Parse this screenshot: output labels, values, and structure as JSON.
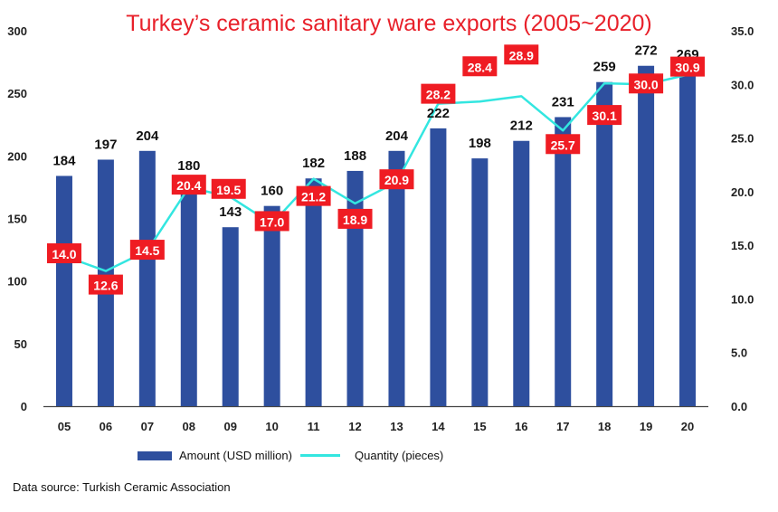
{
  "title": "Turkey’s ceramic sanitary ware exports (2005~2020)",
  "source": "Data source: Turkish Ceramic Association",
  "colors": {
    "bar": "#2e4f9e",
    "line": "#33e6e0",
    "label_box": "#ef1c23",
    "title": "#e8202a"
  },
  "chart_data": {
    "type": "bar",
    "title": "Turkey’s ceramic sanitary ware exports (2005~2020)",
    "categories": [
      "05",
      "06",
      "07",
      "08",
      "09",
      "10",
      "11",
      "12",
      "13",
      "14",
      "15",
      "16",
      "17",
      "18",
      "19",
      "20"
    ],
    "series": [
      {
        "name": "Amount (USD million)",
        "type": "bar",
        "axis": "left",
        "values": [
          184,
          197,
          204,
          180,
          143,
          160,
          182,
          188,
          204,
          222,
          198,
          212,
          231,
          259,
          272,
          269
        ]
      },
      {
        "name": "Quantity (pieces)",
        "type": "line",
        "axis": "right",
        "values": [
          14.0,
          12.6,
          14.5,
          20.4,
          19.5,
          17.0,
          21.2,
          18.9,
          20.9,
          28.2,
          28.4,
          28.9,
          25.7,
          30.1,
          30.0,
          30.9
        ],
        "labels": [
          "14.0",
          "12.6",
          "14.5",
          "20.4",
          "19.5",
          "17.0",
          "21.2",
          "18.9",
          "20.9",
          "28.2",
          "28.4",
          "28.9",
          "25.7",
          "30.1",
          "30.0",
          "30.9"
        ]
      }
    ],
    "ylim_left": [
      0,
      300
    ],
    "yticks_left": [
      "0",
      "50",
      "100",
      "150",
      "200",
      "250",
      "300"
    ],
    "ylim_right": [
      0,
      35
    ],
    "yticks_right": [
      "0.0",
      "5.0",
      "10.0",
      "15.0",
      "20.0",
      "25.0",
      "30.0",
      "35.0"
    ],
    "grid": false,
    "legend_position": "bottom"
  }
}
